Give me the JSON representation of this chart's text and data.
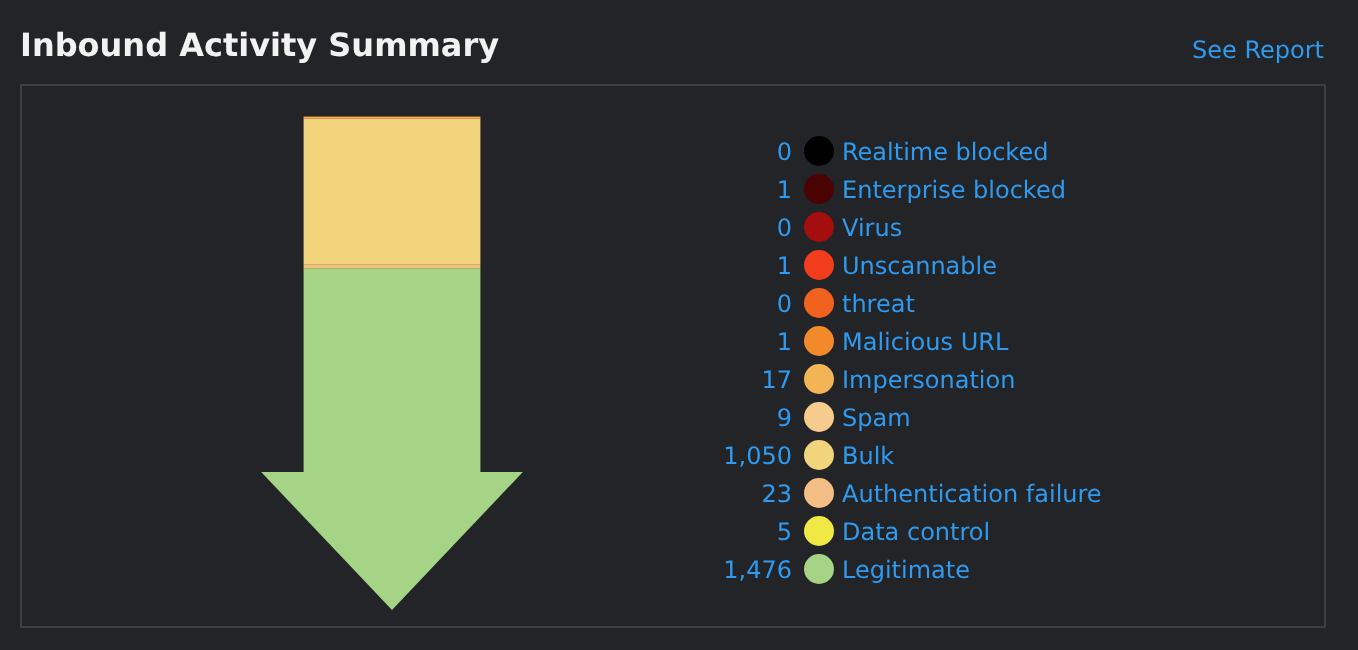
{
  "chart_data": {
    "type": "other",
    "title": "Inbound Activity Summary",
    "annotations": [
      "See Report"
    ],
    "categories": [
      null
    ],
    "legend": "right",
    "series": [
      {
        "name": "Realtime blocked",
        "color": "#000000",
        "values": [
          0
        ],
        "value_labels": [
          "0"
        ]
      },
      {
        "name": "Enterprise blocked",
        "color": "#4a0202",
        "values": [
          1
        ],
        "value_labels": [
          "1"
        ]
      },
      {
        "name": "Virus",
        "color": "#a50e0e",
        "values": [
          0
        ],
        "value_labels": [
          "0"
        ]
      },
      {
        "name": "Unscannable",
        "color": "#f23d1c",
        "values": [
          1
        ],
        "value_labels": [
          "1"
        ]
      },
      {
        "name": "threat",
        "color": "#f2621f",
        "values": [
          0
        ],
        "value_labels": [
          "0"
        ]
      },
      {
        "name": "Malicious URL",
        "color": "#f28a2c",
        "values": [
          1
        ],
        "value_labels": [
          "1"
        ]
      },
      {
        "name": "Impersonation",
        "color": "#f2b455",
        "values": [
          17
        ],
        "value_labels": [
          "17"
        ]
      },
      {
        "name": "Spam",
        "color": "#f5cc8e",
        "values": [
          9
        ],
        "value_labels": [
          "9"
        ]
      },
      {
        "name": "Bulk",
        "color": "#f2d47c",
        "values": [
          1050
        ],
        "value_labels": [
          "1,050"
        ]
      },
      {
        "name": "Authentication failure",
        "color": "#f5be86",
        "values": [
          23
        ],
        "value_labels": [
          "23"
        ]
      },
      {
        "name": "Data control",
        "color": "#f0e844",
        "values": [
          5
        ],
        "value_labels": [
          "5"
        ]
      },
      {
        "name": "Legitimate",
        "color": "#a5d486",
        "values": [
          1476
        ],
        "value_labels": [
          "1,476"
        ]
      }
    ]
  }
}
